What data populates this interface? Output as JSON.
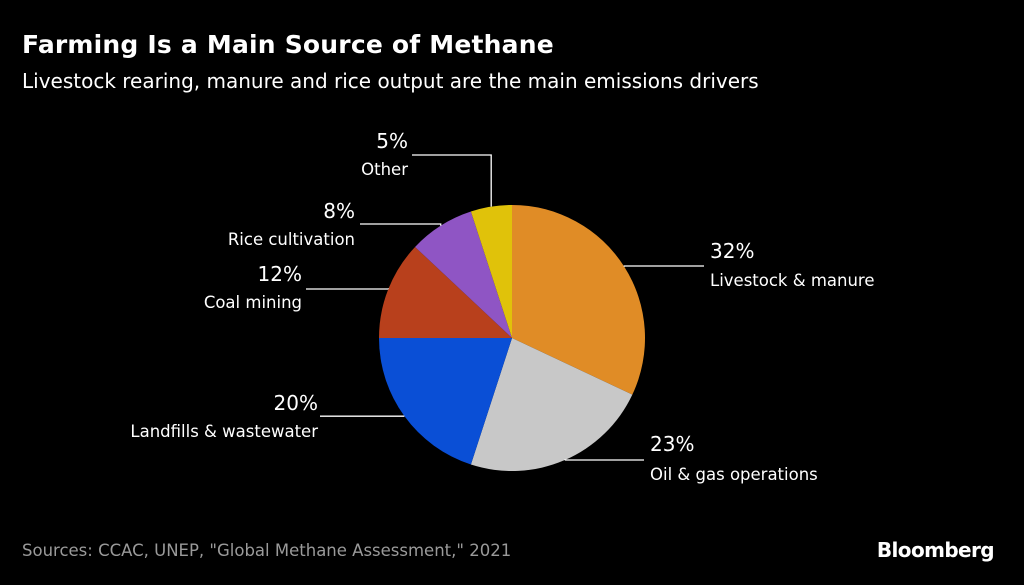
{
  "header": {
    "title": "Farming Is a Main Source of Methane",
    "subtitle": "Livestock rearing, manure and rice output are the main emissions drivers"
  },
  "footer": {
    "source": "Sources: CCAC, UNEP, \"Global Methane Assessment,\" 2021",
    "logo": "Bloomberg"
  },
  "chart_data": {
    "type": "pie",
    "title": "Farming Is a Main Source of Methane",
    "subtitle": "Livestock rearing, manure and rice output are the main emissions drivers",
    "start": "12 o'clock",
    "direction": "clockwise",
    "legend": "none (direct labels)",
    "slices": [
      {
        "label": "Livestock & manure",
        "value": 32,
        "value_label": "32%",
        "color": "#e08c26"
      },
      {
        "label": "Oil & gas operations",
        "value": 23,
        "value_label": "23%",
        "color": "#c8c8c8"
      },
      {
        "label": "Landfills & wastewater",
        "value": 20,
        "value_label": "20%",
        "color": "#0a4fd6"
      },
      {
        "label": "Coal mining",
        "value": 12,
        "value_label": "12%",
        "color": "#b8401c"
      },
      {
        "label": "Rice cultivation",
        "value": 8,
        "value_label": "8%",
        "color": "#8f55c4"
      },
      {
        "label": "Other",
        "value": 5,
        "value_label": "5%",
        "color": "#e0c20a"
      }
    ]
  }
}
